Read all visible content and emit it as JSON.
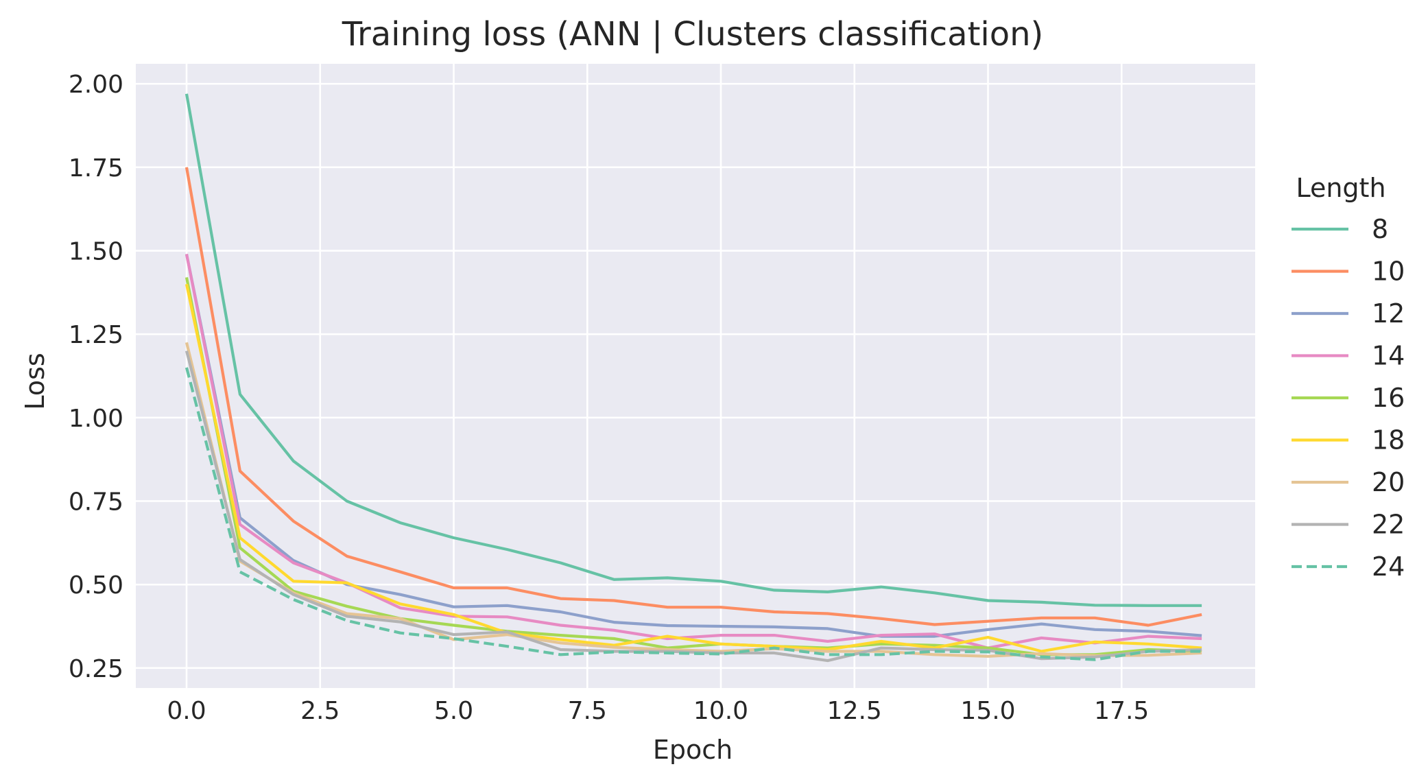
{
  "chart_data": {
    "type": "line",
    "title": "Training loss (ANN | Clusters classification)",
    "xlabel": "Epoch",
    "ylabel": "Loss",
    "xlim": [
      -0.95,
      20.0
    ],
    "ylim": [
      0.19,
      2.06
    ],
    "x_ticks": [
      0.0,
      2.5,
      5.0,
      7.5,
      10.0,
      12.5,
      15.0,
      17.5
    ],
    "x_tick_labels": [
      "0.0",
      "2.5",
      "5.0",
      "7.5",
      "10.0",
      "12.5",
      "15.0",
      "17.5"
    ],
    "y_ticks": [
      0.25,
      0.5,
      0.75,
      1.0,
      1.25,
      1.5,
      1.75,
      2.0
    ],
    "y_tick_labels": [
      "0.25",
      "0.50",
      "0.75",
      "1.00",
      "1.25",
      "1.50",
      "1.75",
      "2.00"
    ],
    "grid": true,
    "background": "#eaeaf2",
    "legend": {
      "title": "Length",
      "placement": "right"
    },
    "x": [
      0,
      1,
      2,
      3,
      4,
      5,
      6,
      7,
      8,
      9,
      10,
      11,
      12,
      13,
      14,
      15,
      16,
      17,
      18,
      19
    ],
    "series": [
      {
        "name": "8",
        "color": "#66c2a5",
        "dashed": false,
        "values": [
          1.97,
          1.07,
          0.87,
          0.75,
          0.685,
          0.64,
          0.605,
          0.565,
          0.515,
          0.52,
          0.51,
          0.483,
          0.478,
          0.493,
          0.475,
          0.452,
          0.447,
          0.438,
          0.437,
          0.437
        ]
      },
      {
        "name": "10",
        "color": "#fc8d62",
        "dashed": false,
        "values": [
          1.75,
          0.84,
          0.69,
          0.585,
          0.538,
          0.49,
          0.49,
          0.458,
          0.452,
          0.432,
          0.432,
          0.418,
          0.413,
          0.398,
          0.38,
          0.39,
          0.4,
          0.4,
          0.378,
          0.41
        ]
      },
      {
        "name": "12",
        "color": "#8da0cb",
        "dashed": false,
        "values": [
          1.49,
          0.7,
          0.572,
          0.5,
          0.47,
          0.433,
          0.437,
          0.418,
          0.387,
          0.377,
          0.375,
          0.373,
          0.368,
          0.345,
          0.345,
          0.365,
          0.382,
          0.365,
          0.36,
          0.347
        ]
      },
      {
        "name": "14",
        "color": "#e78ac3",
        "dashed": false,
        "values": [
          1.49,
          0.68,
          0.565,
          0.505,
          0.43,
          0.405,
          0.403,
          0.378,
          0.363,
          0.338,
          0.348,
          0.348,
          0.33,
          0.348,
          0.352,
          0.31,
          0.34,
          0.325,
          0.345,
          0.338
        ]
      },
      {
        "name": "16",
        "color": "#a6d854",
        "dashed": false,
        "values": [
          1.42,
          0.61,
          0.48,
          0.435,
          0.398,
          0.378,
          0.36,
          0.348,
          0.338,
          0.31,
          0.322,
          0.315,
          0.31,
          0.322,
          0.318,
          0.31,
          0.29,
          0.29,
          0.305,
          0.3
        ]
      },
      {
        "name": "18",
        "color": "#ffd92f",
        "dashed": false,
        "values": [
          1.4,
          0.64,
          0.51,
          0.505,
          0.442,
          0.41,
          0.355,
          0.335,
          0.318,
          0.345,
          0.322,
          0.315,
          0.305,
          0.33,
          0.31,
          0.342,
          0.3,
          0.328,
          0.322,
          0.31
        ]
      },
      {
        "name": "20",
        "color": "#e5c494",
        "dashed": false,
        "values": [
          1.225,
          0.57,
          0.475,
          0.413,
          0.398,
          0.335,
          0.35,
          0.325,
          0.312,
          0.305,
          0.3,
          0.308,
          0.3,
          0.3,
          0.29,
          0.285,
          0.293,
          0.287,
          0.288,
          0.295
        ]
      },
      {
        "name": "22",
        "color": "#b3b3b3",
        "dashed": false,
        "values": [
          1.2,
          0.575,
          0.47,
          0.405,
          0.388,
          0.35,
          0.358,
          0.305,
          0.3,
          0.3,
          0.295,
          0.295,
          0.272,
          0.31,
          0.305,
          0.303,
          0.278,
          0.283,
          0.3,
          0.305
        ]
      },
      {
        "name": "24",
        "color": "#66c2a5",
        "dashed": true,
        "values": [
          1.15,
          0.538,
          0.455,
          0.392,
          0.355,
          0.338,
          0.315,
          0.29,
          0.298,
          0.295,
          0.292,
          0.31,
          0.29,
          0.29,
          0.3,
          0.298,
          0.283,
          0.275,
          0.3,
          0.3
        ]
      }
    ]
  }
}
